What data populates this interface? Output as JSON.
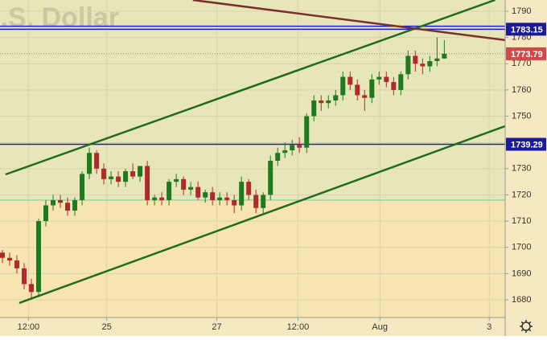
{
  "chart_data": {
    "type": "candlestick",
    "title": "U.S. Dollar",
    "open": [
      1698,
      1696,
      1695,
      1692,
      1686,
      1683,
      1710,
      1716,
      1718,
      1717,
      1714,
      1718,
      1728,
      1736,
      1730,
      1726,
      1727,
      1725,
      1729,
      1727,
      1731,
      1718,
      1719,
      1718,
      1725,
      1726,
      1722,
      1723,
      1719,
      1721,
      1718,
      1719,
      1718,
      1716,
      1725,
      1720,
      1715,
      1720,
      1733,
      1736,
      1737,
      1739,
      1738,
      1750,
      1756,
      1755,
      1756,
      1758,
      1765,
      1762,
      1758,
      1757,
      1764,
      1765,
      1763,
      1760,
      1766,
      1773,
      1770,
      1769,
      1771,
      1772
    ],
    "high": [
      1699,
      1698,
      1697,
      1694,
      1688,
      1711,
      1718,
      1720,
      1720,
      1719,
      1719,
      1729,
      1738,
      1737,
      1732,
      1729,
      1729,
      1730,
      1732,
      1731,
      1733,
      1720,
      1721,
      1726,
      1728,
      1727,
      1725,
      1725,
      1722,
      1723,
      1721,
      1721,
      1720,
      1727,
      1726,
      1722,
      1721,
      1735,
      1738,
      1740,
      1741,
      1742,
      1751,
      1758,
      1758,
      1758,
      1760,
      1767,
      1767,
      1764,
      1760,
      1766,
      1767,
      1767,
      1765,
      1767,
      1775,
      1775,
      1772,
      1773,
      1780,
      1779
    ],
    "low": [
      1694,
      1693,
      1690,
      1684,
      1680,
      1681,
      1708,
      1714,
      1715,
      1712,
      1712,
      1716,
      1726,
      1728,
      1724,
      1724,
      1723,
      1723,
      1726,
      1725,
      1716,
      1716,
      1716,
      1716,
      1723,
      1720,
      1720,
      1718,
      1717,
      1716,
      1716,
      1716,
      1713,
      1714,
      1718,
      1713,
      1713,
      1718,
      1731,
      1734,
      1735,
      1736,
      1736,
      1748,
      1752,
      1753,
      1754,
      1756,
      1760,
      1756,
      1752,
      1755,
      1762,
      1761,
      1758,
      1758,
      1764,
      1767,
      1766,
      1767,
      1769,
      1772
    ],
    "close": [
      1696,
      1695,
      1692,
      1686,
      1683,
      1710,
      1716,
      1718,
      1717,
      1714,
      1718,
      1728,
      1736,
      1730,
      1726,
      1727,
      1725,
      1729,
      1727,
      1731,
      1718,
      1719,
      1718,
      1725,
      1726,
      1722,
      1723,
      1719,
      1721,
      1718,
      1719,
      1718,
      1716,
      1725,
      1720,
      1715,
      1720,
      1733,
      1736,
      1737,
      1739,
      1738,
      1750,
      1756,
      1755,
      1756,
      1758,
      1765,
      1762,
      1758,
      1757,
      1764,
      1765,
      1763,
      1760,
      1766,
      1773,
      1770,
      1769,
      1771,
      1772,
      1773.79
    ],
    "up_color": "#1f7a1f",
    "down_color": "#b02a2a",
    "xlim": [
      -0.33,
      69.4
    ],
    "ylim": [
      1673.26,
      1794.29
    ],
    "xticks": [
      {
        "value": 3.6,
        "label": "12:00"
      },
      {
        "value": 14.4,
        "label": "25"
      },
      {
        "value": 29.6,
        "label": "27"
      },
      {
        "value": 40.8,
        "label": "12:00"
      },
      {
        "value": 52.1,
        "label": "Aug"
      },
      {
        "value": 67.2,
        "label": "3"
      }
    ],
    "yticks": [
      1680,
      1690,
      1700,
      1710,
      1720,
      1730,
      1740,
      1750,
      1760,
      1770,
      1780,
      1790
    ],
    "grid": true,
    "zones": [
      {
        "from": 1718,
        "to": 1794.29,
        "color": "#e7e6b9"
      },
      {
        "from": 1673.26,
        "to": 1718,
        "color": "#f6e4b3"
      }
    ],
    "levels": [
      {
        "value": 1784.3,
        "color": "#1c1cd8"
      },
      {
        "value": 1783.15,
        "color": "#1c1cd8"
      },
      {
        "value": 1739.29,
        "color": "#1c1cd8"
      },
      {
        "value": 1718,
        "color": "#6fcf9f"
      }
    ],
    "trend_lines": [
      {
        "color": "#1f6b1f",
        "x": [
          0.44,
          68.0
        ],
        "y": [
          1727.8,
          1794.29
        ]
      },
      {
        "color": "#1f6b1f",
        "x": [
          2.33,
          69.4
        ],
        "y": [
          1678.8,
          1746.2
        ]
      },
      {
        "color": "#7a2f2f",
        "x": [
          26.3,
          69.4
        ],
        "y": [
          1794.29,
          1779.0
        ]
      }
    ],
    "price_tags": [
      {
        "value": 1783.15,
        "color": "#1a1a9a"
      },
      {
        "value": 1739.29,
        "color": "#1a1a9a"
      },
      {
        "value": 1773.79,
        "color": "#d24848"
      }
    ]
  }
}
